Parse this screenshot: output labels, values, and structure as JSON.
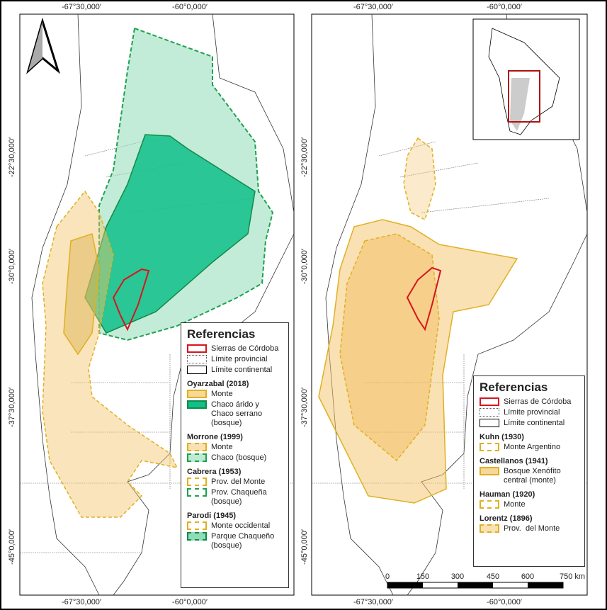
{
  "panels": [
    {
      "top_labels": [
        "-67°30,000′",
        "-60°0,000′"
      ],
      "bottom_labels": [
        "-67°30,000′",
        "-60°0,000′"
      ],
      "left_labels": [
        "-22°30,000′",
        "-30°0,000′",
        "-37°30,000′",
        "-45°0,000′"
      ],
      "legend": {
        "title": "Referencias",
        "base": [
          "Sierras de Córdoba",
          "Límite provincial",
          "Límite continental"
        ],
        "groups": [
          {
            "author": "Oyarzabal (2018)",
            "items": [
              "Monte",
              "Chaco árido y Chaco serrano (bosque)"
            ]
          },
          {
            "author": "Morrone (1999)",
            "items": [
              "Monte",
              "Chaco (bosque)"
            ]
          },
          {
            "author": "Cabrera (1953)",
            "items": [
              "Prov. del Monte",
              "Prov. Chaqueña (bosque)"
            ]
          },
          {
            "author": "Parodi (1945)",
            "items": [
              "Monte occidental",
              "Parque Chaqueño (bosque)"
            ]
          }
        ]
      }
    },
    {
      "top_labels": [
        "-67°30,000′",
        "-60°0,000′"
      ],
      "bottom_labels": [
        "-67°30,000′",
        "-60°0,000′"
      ],
      "left_labels": [
        "-22°30,000′",
        "-30°0,000′",
        "-37°30,000′",
        "-45°0,000′"
      ],
      "legend": {
        "title": "Referencias",
        "base": [
          "Sierras de Córdoba",
          "Límite provincial",
          "Límite continental"
        ],
        "groups": [
          {
            "author": "Kuhn (1930)",
            "items": [
              "Monte Argentino"
            ]
          },
          {
            "author": "Castellanos (1941)",
            "items": [
              "Bosque Xenófito central (monte)"
            ]
          },
          {
            "author": "Hauman (1920)",
            "items": [
              "Monte"
            ]
          },
          {
            "author": "Lorentz (1896)",
            "items": [
              "Prov.  del Monte"
            ]
          }
        ]
      },
      "scale_bar": [
        "0",
        "150",
        "300",
        "450",
        "600",
        "750 km"
      ]
    }
  ]
}
